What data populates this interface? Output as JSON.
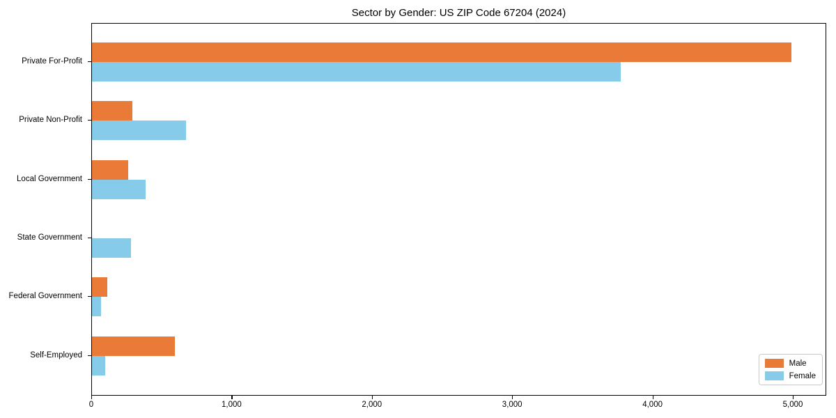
{
  "title": "Sector by Gender: US ZIP Code 67204 (2024)",
  "chart_data": {
    "type": "bar",
    "orientation": "horizontal",
    "title": "Sector by Gender: US ZIP Code 67204 (2024)",
    "xlabel": "",
    "ylabel": "",
    "categories": [
      "Private For-Profit",
      "Private Non-Profit",
      "Local Government",
      "State Government",
      "Federal Government",
      "Self-Employed"
    ],
    "series": [
      {
        "name": "Male",
        "color": "#ea7a38",
        "values": [
          4985,
          290,
          260,
          0,
          110,
          590
        ]
      },
      {
        "name": "Female",
        "color": "#86cbe9",
        "values": [
          3770,
          670,
          380,
          280,
          65,
          95
        ]
      }
    ],
    "x_ticks": [
      {
        "value": 0,
        "label": "0"
      },
      {
        "value": 1000,
        "label": "1,000"
      },
      {
        "value": 2000,
        "label": "2,000"
      },
      {
        "value": 3000,
        "label": "3,000"
      },
      {
        "value": 4000,
        "label": "4,000"
      },
      {
        "value": 5000,
        "label": "5,000"
      }
    ],
    "xlim": [
      0,
      5238
    ],
    "grid": false,
    "legend_position": "lower right"
  },
  "legend": {
    "items": [
      {
        "label": "Male",
        "color": "#ea7a38"
      },
      {
        "label": "Female",
        "color": "#86cbe9"
      }
    ]
  }
}
